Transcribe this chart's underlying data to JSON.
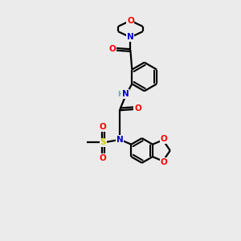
{
  "background_color": "#ebebeb",
  "bond_color": "#000000",
  "atom_colors": {
    "O": "#ff0000",
    "N": "#0000cc",
    "S": "#cccc00",
    "C": "#000000",
    "H": "#6fa8a8"
  },
  "figsize": [
    3.0,
    3.0
  ],
  "dpi": 100
}
